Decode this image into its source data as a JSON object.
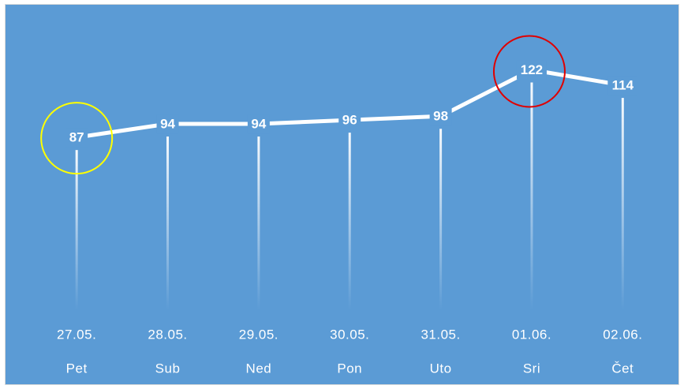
{
  "chart_data": {
    "type": "line",
    "categories": [
      "27.05.",
      "28.05.",
      "29.05.",
      "30.05.",
      "31.05.",
      "01.06.",
      "02.06."
    ],
    "weekdays": [
      "Pet",
      "Sub",
      "Ned",
      "Pon",
      "Uto",
      "Sri",
      "Čet"
    ],
    "values": [
      87,
      94,
      94,
      96,
      98,
      122,
      114
    ],
    "color": "#ffffff",
    "ylim": [
      0,
      150
    ]
  }
}
